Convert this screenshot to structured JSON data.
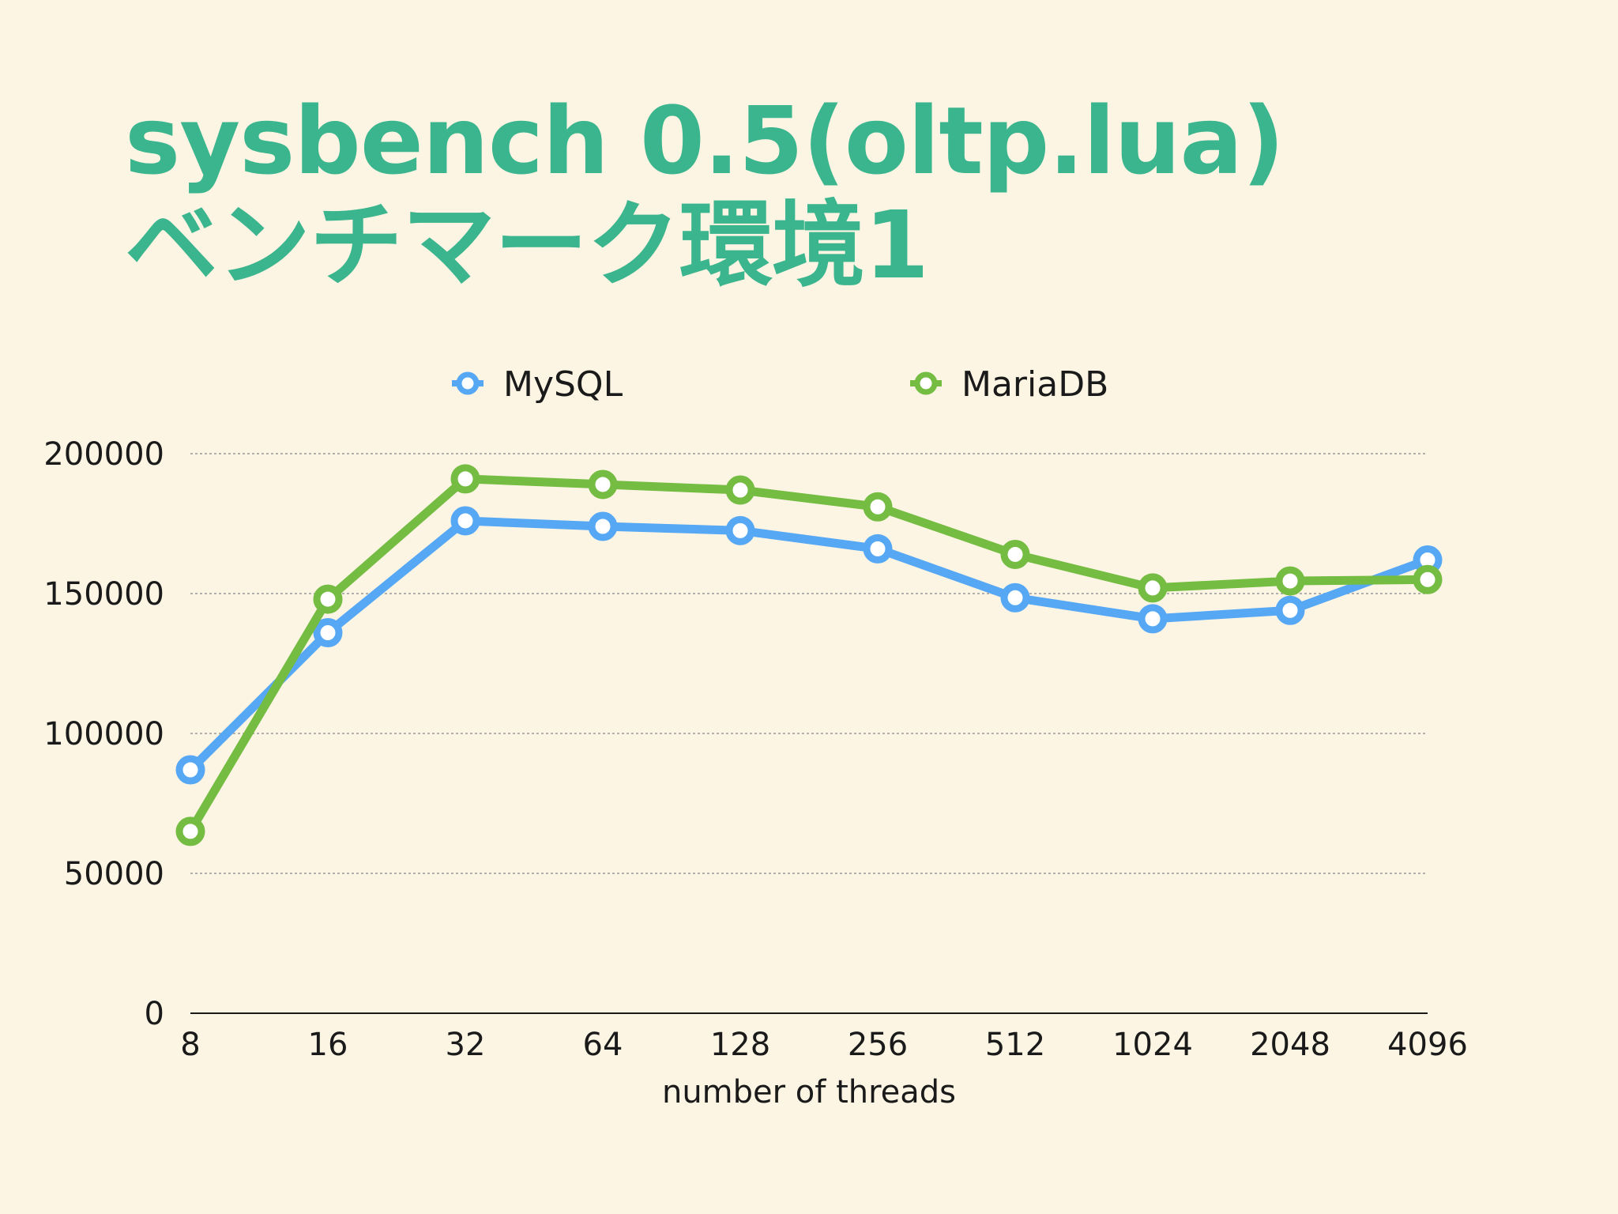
{
  "slide": {
    "title_line1": "sysbench 0.5(oltp.lua)",
    "title_line2": "ベンチマーク環境1"
  },
  "chart_data": {
    "type": "line",
    "categories": [
      "8",
      "16",
      "32",
      "64",
      "128",
      "256",
      "512",
      "1024",
      "2048",
      "4096"
    ],
    "series": [
      {
        "name": "MySQL",
        "color": "#56a8f5",
        "values": [
          87000,
          136000,
          176000,
          174000,
          172500,
          166000,
          148500,
          141000,
          144000,
          162000
        ]
      },
      {
        "name": "MariaDB",
        "color": "#74bc42",
        "values": [
          65000,
          148000,
          191000,
          189000,
          187000,
          181000,
          164000,
          152000,
          154500,
          155000
        ]
      }
    ],
    "xlabel": "number of threads",
    "ylabel": "",
    "ylim": [
      0,
      200000
    ],
    "yticks": [
      "0",
      "50000",
      "100000",
      "150000",
      "200000"
    ],
    "grid": true,
    "legend_position": "top"
  }
}
